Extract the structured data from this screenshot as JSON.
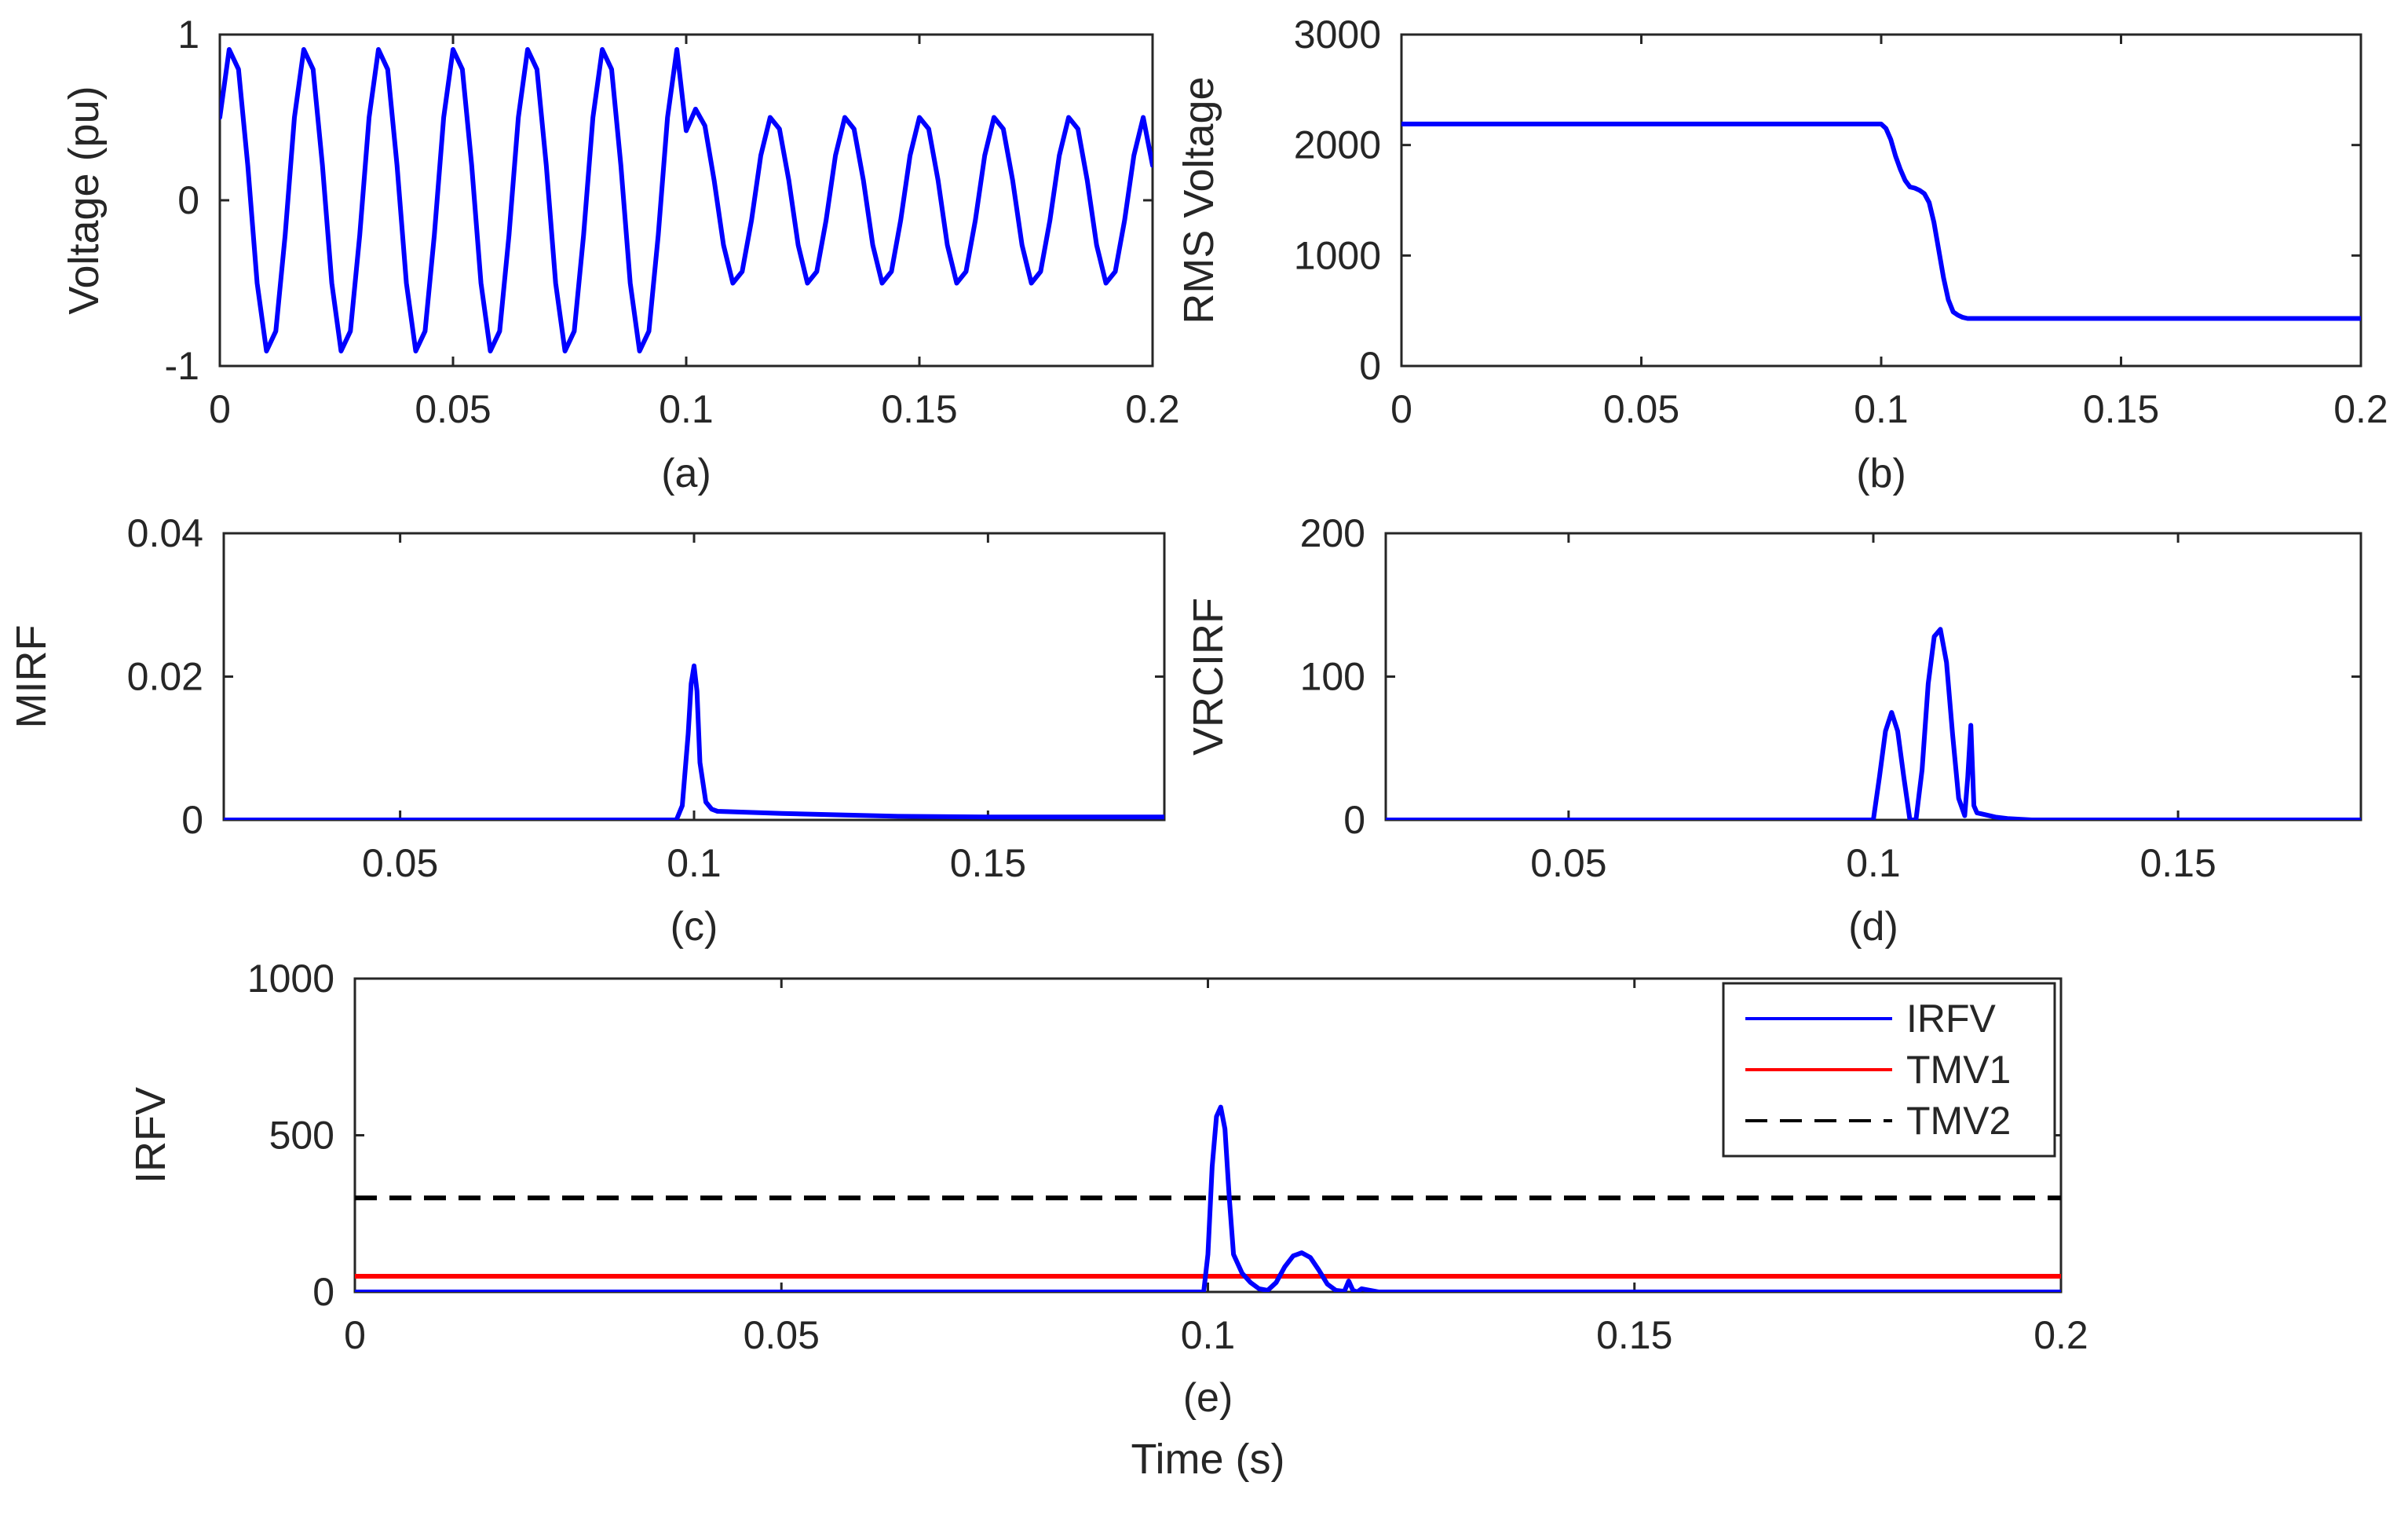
{
  "figure": {
    "time_label": "Time (s)",
    "colors": {
      "blue": "#0000ff",
      "red": "#ff0000",
      "black": "#000000"
    }
  },
  "chart_data": [
    {
      "id": "a",
      "type": "line",
      "caption": "(a)",
      "ylabel": "Voltage (pu)",
      "xlim": [
        0,
        0.2
      ],
      "ylim": [
        -1,
        1
      ],
      "xticks": [
        0,
        0.05,
        0.1,
        0.15,
        0.2
      ],
      "xtick_labels": [
        "0",
        "0.05",
        "0.1",
        "0.15",
        "0.2"
      ],
      "yticks": [
        -1,
        0,
        1
      ],
      "ytick_labels": [
        "-1",
        "0",
        "1"
      ],
      "series": [
        {
          "name": "Voltage",
          "color": "#0000ff",
          "x": [
            0,
            0.002,
            0.004,
            0.006,
            0.008,
            0.01,
            0.012,
            0.014,
            0.016,
            0.018,
            0.02,
            0.022,
            0.024,
            0.026,
            0.028,
            0.03,
            0.032,
            0.034,
            0.036,
            0.038,
            0.04,
            0.042,
            0.044,
            0.046,
            0.048,
            0.05,
            0.052,
            0.054,
            0.056,
            0.058,
            0.06,
            0.062,
            0.064,
            0.066,
            0.068,
            0.07,
            0.072,
            0.074,
            0.076,
            0.078,
            0.08,
            0.082,
            0.084,
            0.086,
            0.088,
            0.09,
            0.092,
            0.094,
            0.096,
            0.098,
            0.1,
            0.102,
            0.104,
            0.106,
            0.108,
            0.11,
            0.112,
            0.114,
            0.116,
            0.118,
            0.12,
            0.122,
            0.124,
            0.126,
            0.128,
            0.13,
            0.132,
            0.134,
            0.136,
            0.138,
            0.14,
            0.142,
            0.144,
            0.146,
            0.148,
            0.15,
            0.152,
            0.154,
            0.156,
            0.158,
            0.16,
            0.162,
            0.164,
            0.166,
            0.168,
            0.17,
            0.172,
            0.174,
            0.176,
            0.178,
            0.18,
            0.182,
            0.184,
            0.186,
            0.188,
            0.19,
            0.192,
            0.194,
            0.196,
            0.198,
            0.2
          ],
          "y": [
            0.5,
            0.91,
            0.79,
            0.21,
            -0.5,
            -0.91,
            -0.79,
            -0.21,
            0.5,
            0.91,
            0.79,
            0.21,
            -0.5,
            -0.91,
            -0.79,
            -0.21,
            0.5,
            0.91,
            0.79,
            0.21,
            -0.5,
            -0.91,
            -0.79,
            -0.21,
            0.5,
            0.91,
            0.79,
            0.21,
            -0.5,
            -0.91,
            -0.79,
            -0.21,
            0.5,
            0.91,
            0.79,
            0.21,
            -0.5,
            -0.91,
            -0.79,
            -0.21,
            0.5,
            0.91,
            0.79,
            0.21,
            -0.5,
            -0.91,
            -0.79,
            -0.21,
            0.5,
            0.91,
            0.42,
            0.55,
            0.45,
            0.12,
            -0.27,
            -0.5,
            -0.43,
            -0.12,
            0.27,
            0.5,
            0.43,
            0.12,
            -0.27,
            -0.5,
            -0.43,
            -0.12,
            0.27,
            0.5,
            0.43,
            0.12,
            -0.27,
            -0.5,
            -0.43,
            -0.12,
            0.27,
            0.5,
            0.43,
            0.12,
            -0.27,
            -0.5,
            -0.43,
            -0.12,
            0.27,
            0.5,
            0.43,
            0.12,
            -0.27,
            -0.5,
            -0.43,
            -0.12,
            0.27,
            0.5,
            0.43,
            0.12,
            -0.27,
            -0.5,
            -0.43,
            -0.12,
            0.27,
            0.5,
            0.21
          ]
        }
      ]
    },
    {
      "id": "b",
      "type": "line",
      "caption": "(b)",
      "ylabel": "RMS Voltage",
      "xlim": [
        0,
        0.2
      ],
      "ylim": [
        0,
        3000
      ],
      "xticks": [
        0,
        0.05,
        0.1,
        0.15,
        0.2
      ],
      "xtick_labels": [
        "0",
        "0.05",
        "0.1",
        "0.15",
        "0.2"
      ],
      "yticks": [
        0,
        1000,
        2000,
        3000
      ],
      "ytick_labels": [
        "0",
        "1000",
        "2000",
        "3000"
      ],
      "series": [
        {
          "name": "RMS Voltage",
          "color": "#0000ff",
          "x": [
            0,
            0.1,
            0.101,
            0.102,
            0.103,
            0.104,
            0.105,
            0.106,
            0.107,
            0.108,
            0.109,
            0.11,
            0.111,
            0.112,
            0.113,
            0.114,
            0.115,
            0.116,
            0.117,
            0.118,
            0.12,
            0.2
          ],
          "y": [
            2190,
            2190,
            2150,
            2050,
            1900,
            1780,
            1680,
            1620,
            1610,
            1590,
            1560,
            1480,
            1300,
            1050,
            800,
            600,
            490,
            460,
            440,
            430,
            430,
            430
          ]
        }
      ]
    },
    {
      "id": "c",
      "type": "line",
      "caption": "(c)",
      "ylabel": "MIRF",
      "xlim": [
        0.02,
        0.18
      ],
      "ylim": [
        0,
        0.04
      ],
      "xticks": [
        0.05,
        0.1,
        0.15
      ],
      "xtick_labels": [
        "0.05",
        "0.1",
        "0.15"
      ],
      "yticks": [
        0,
        0.02,
        0.04
      ],
      "ytick_labels": [
        "0",
        "0.02",
        "0.04"
      ],
      "series": [
        {
          "name": "MIRF",
          "color": "#0000ff",
          "x": [
            0.02,
            0.097,
            0.098,
            0.099,
            0.0995,
            0.1,
            0.1005,
            0.101,
            0.102,
            0.103,
            0.104,
            0.108,
            0.115,
            0.125,
            0.135,
            0.15,
            0.18
          ],
          "y": [
            0,
            0,
            0.002,
            0.012,
            0.019,
            0.0215,
            0.018,
            0.008,
            0.0025,
            0.0015,
            0.0012,
            0.0011,
            0.0009,
            0.0007,
            0.0005,
            0.0004,
            0.0004
          ]
        }
      ]
    },
    {
      "id": "d",
      "type": "line",
      "caption": "(d)",
      "ylabel": "VRCIRF",
      "xlim": [
        0.02,
        0.18
      ],
      "ylim": [
        0,
        200
      ],
      "xticks": [
        0.05,
        0.1,
        0.15
      ],
      "xtick_labels": [
        "0.05",
        "0.1",
        "0.15"
      ],
      "yticks": [
        0,
        100,
        200
      ],
      "ytick_labels": [
        "0",
        "100",
        "200"
      ],
      "series": [
        {
          "name": "VRCIRF",
          "color": "#0000ff",
          "x": [
            0.02,
            0.1,
            0.101,
            0.102,
            0.103,
            0.104,
            0.105,
            0.106,
            0.107,
            0.108,
            0.109,
            0.11,
            0.111,
            0.112,
            0.113,
            0.114,
            0.115,
            0.1155,
            0.116,
            0.1165,
            0.117,
            0.118,
            0.12,
            0.122,
            0.126,
            0.18
          ],
          "y": [
            0,
            0,
            30,
            62,
            75,
            62,
            30,
            0,
            0,
            35,
            95,
            128,
            133,
            110,
            60,
            15,
            3,
            30,
            66,
            10,
            5,
            4,
            2,
            1,
            0,
            0
          ]
        }
      ]
    },
    {
      "id": "e",
      "type": "line",
      "caption": "(e)",
      "xlabel": "Time (s)",
      "ylabel": "IRFV",
      "xlim": [
        0,
        0.2
      ],
      "ylim": [
        0,
        1000
      ],
      "xticks": [
        0,
        0.05,
        0.1,
        0.15,
        0.2
      ],
      "xtick_labels": [
        "0",
        "0.05",
        "0.1",
        "0.15",
        "0.2"
      ],
      "yticks": [
        0,
        500,
        1000
      ],
      "ytick_labels": [
        "0",
        "500",
        "1000"
      ],
      "legend": "top-right",
      "series": [
        {
          "name": "IRFV",
          "color": "#0000ff",
          "style": "solid",
          "x": [
            0,
            0.0995,
            0.1,
            0.1005,
            0.101,
            0.1015,
            0.102,
            0.1025,
            0.103,
            0.104,
            0.105,
            0.106,
            0.107,
            0.108,
            0.109,
            0.11,
            0.111,
            0.112,
            0.113,
            0.114,
            0.115,
            0.116,
            0.1165,
            0.117,
            0.1175,
            0.118,
            0.12,
            0.2
          ],
          "y": [
            0,
            0,
            120,
            400,
            560,
            590,
            520,
            300,
            120,
            60,
            30,
            10,
            5,
            30,
            80,
            115,
            125,
            110,
            70,
            25,
            5,
            2,
            35,
            5,
            0,
            10,
            0,
            0
          ]
        },
        {
          "name": "TMV1",
          "color": "#ff0000",
          "style": "solid",
          "x": [
            0,
            0.2
          ],
          "y": [
            50,
            50
          ]
        },
        {
          "name": "TMV2",
          "color": "#000000",
          "style": "dashed",
          "x": [
            0,
            0.2
          ],
          "y": [
            300,
            300
          ]
        }
      ]
    }
  ]
}
